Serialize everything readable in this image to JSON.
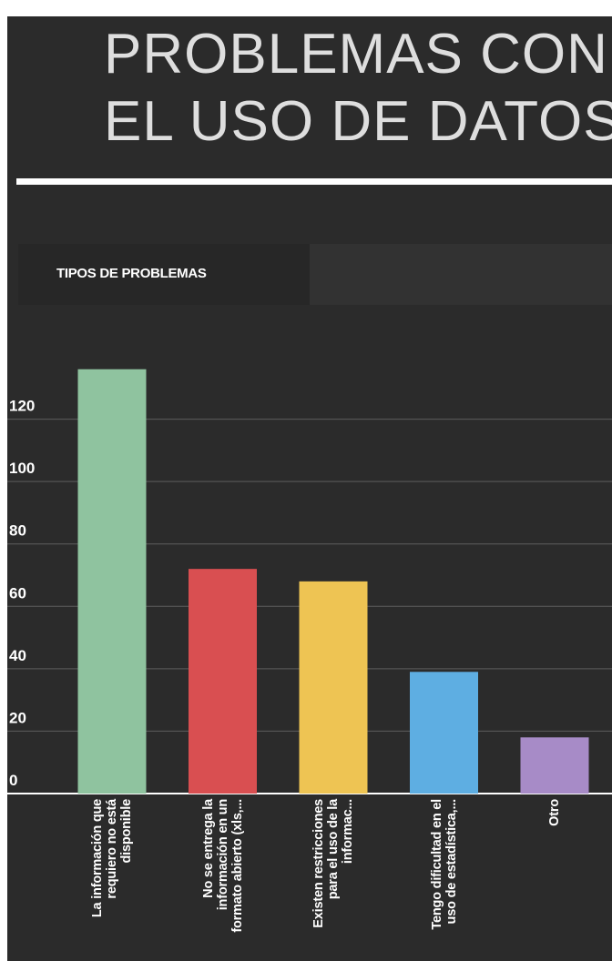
{
  "header": {
    "title_lines": [
      "PROBLEMAS CON",
      "EL USO DE DATOS"
    ]
  },
  "tab": {
    "label": "TIPOS DE PROBLEMAS"
  },
  "chart_data": {
    "type": "bar",
    "categories": [
      "La información que requiero no está disponible",
      "No se entrega la información en un formato abierto (xls,...",
      "Existen restricciones para el uso de la informac...",
      "Tengo dificultad en el uso de estadística,...",
      "Otro"
    ],
    "values": [
      136,
      72,
      68,
      39,
      18
    ],
    "colors": [
      "#8fc39f",
      "#d94f51",
      "#eec453",
      "#5eaee2",
      "#a78bc7"
    ],
    "ylim": [
      0,
      140
    ],
    "yticks": [
      0,
      20,
      40,
      60,
      80,
      100,
      120
    ],
    "grid": true
  }
}
